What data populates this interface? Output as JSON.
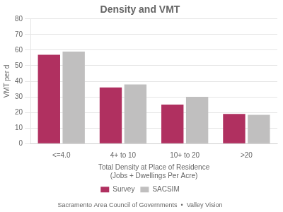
{
  "chart_data": {
    "type": "bar",
    "title": "Density and VMT",
    "categories": [
      "<=4.0",
      "4+ to 10",
      "10+ to 20",
      ">20"
    ],
    "series": [
      {
        "name": "Survey",
        "color": "#b03060",
        "values": [
          57,
          36,
          25,
          19
        ]
      },
      {
        "name": "SACSIM",
        "color": "#c0bfbf",
        "values": [
          59,
          38,
          30,
          18.5
        ]
      }
    ],
    "xlabel": [
      "Total Density at Place of Residence",
      "(Jobs + Dwellings Per Acre)"
    ],
    "ylabel": "VMT per d",
    "ylim": [
      0,
      80
    ],
    "yticks": [
      0,
      10,
      20,
      30,
      40,
      50,
      60,
      70,
      80
    ],
    "grid": true,
    "legend": "bottom",
    "annotations": [
      "Sacramento Area Council of Governments  •  Valley Vision"
    ]
  }
}
